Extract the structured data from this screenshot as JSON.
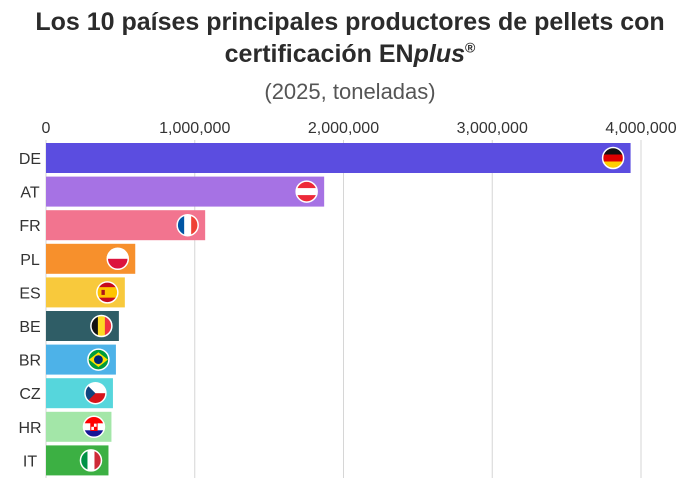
{
  "title_line1": "Los 10 países principales productores de pellets con",
  "title_line2_prefix": "certificación EN",
  "title_line2_italic": "plus",
  "title_line2_mark": "®",
  "subtitle": "(2025, toneladas)",
  "chart_data": {
    "type": "bar",
    "orientation": "horizontal",
    "title": "Los 10 países principales productores de pellets con certificación ENplus®",
    "subtitle": "(2025, toneladas)",
    "categories": [
      "DE",
      "AT",
      "FR",
      "PL",
      "ES",
      "BE",
      "BR",
      "CZ",
      "HR",
      "IT"
    ],
    "values": [
      3930000,
      1870000,
      1070000,
      600000,
      530000,
      490000,
      470000,
      450000,
      440000,
      420000
    ],
    "colors": [
      "#5b4de0",
      "#a672e4",
      "#f2748f",
      "#f7902c",
      "#f8c93c",
      "#2f5d66",
      "#4db2e8",
      "#56d6dc",
      "#a3e6a8",
      "#3cb043"
    ],
    "flags": [
      "germany-flag",
      "austria-flag",
      "france-flag",
      "poland-flag",
      "spain-flag",
      "belgium-flag",
      "brazil-flag",
      "czechia-flag",
      "croatia-flag",
      "italy-flag"
    ],
    "xlim": [
      0,
      4000000
    ],
    "xticks": [
      0,
      1000000,
      2000000,
      3000000,
      4000000
    ],
    "xtick_labels": [
      "0",
      "1,000,000",
      "2,000,000",
      "3,000,000",
      "4,000,000"
    ],
    "xaxis_position": "top",
    "grid": true,
    "legend": "none"
  }
}
